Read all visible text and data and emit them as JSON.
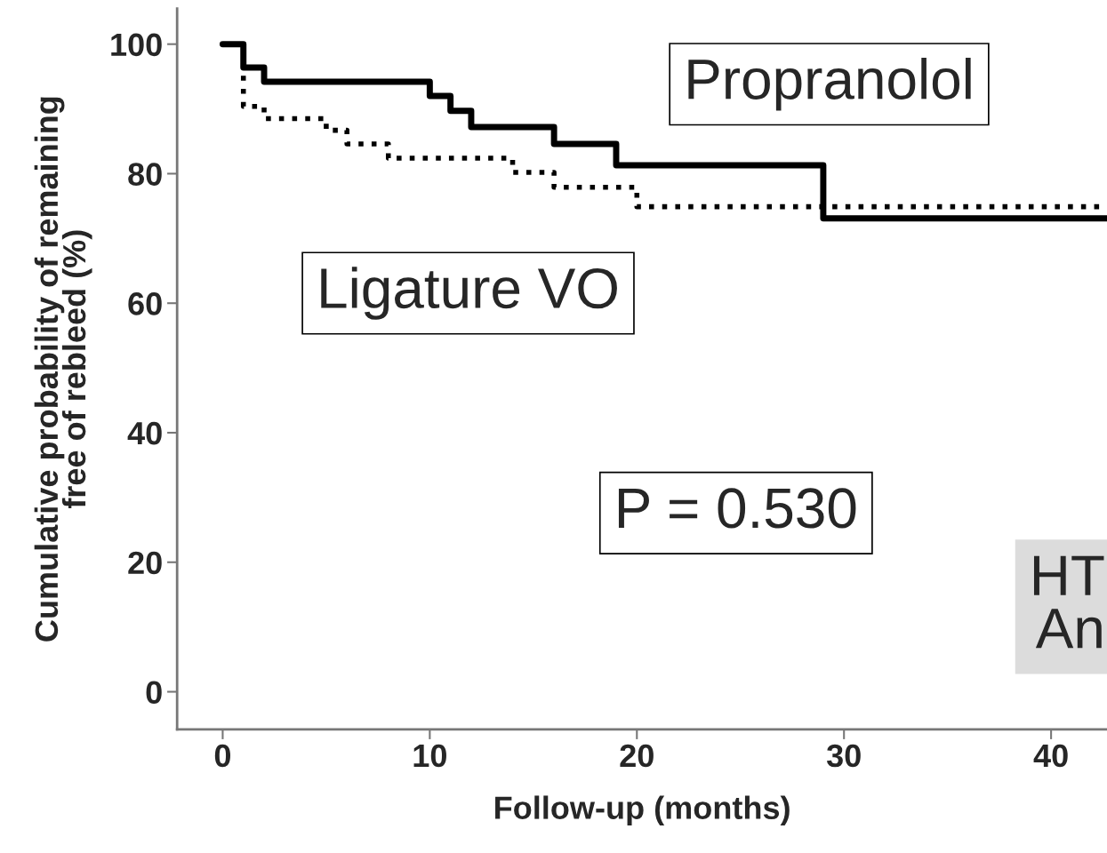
{
  "chart_data": {
    "type": "step",
    "xlabel": "Follow-up (months)",
    "ylabel": "Cumulative probability of remaining\nfree of rebleed (%)",
    "series": [
      {
        "name": "Propranolol",
        "color": "#000000",
        "line_style": "solid",
        "x": [
          0,
          1,
          2,
          10,
          11,
          12,
          16,
          19,
          29,
          42.7
        ],
        "values": [
          100,
          96.4,
          94.2,
          92,
          89.7,
          87.2,
          84.6,
          81.3,
          73.1,
          73.1
        ]
      },
      {
        "name": "Ligature VO",
        "color": "#000000",
        "line_style": "dotted",
        "x": [
          0,
          1,
          2,
          5,
          6,
          8,
          14,
          16,
          20,
          42.7
        ],
        "values": [
          100,
          90.4,
          88.5,
          86.7,
          84.6,
          82.4,
          80.2,
          77.9,
          74.9,
          74.9
        ]
      }
    ],
    "annotations": [
      "P = 0.530",
      "HT\nAn"
    ],
    "xlim": [
      -2.2,
      42.7
    ],
    "xticks": [
      0,
      10,
      20,
      30,
      40
    ],
    "ylim": [
      -5.8,
      105.5
    ],
    "yticks": [
      0,
      20,
      40,
      60,
      80,
      100
    ],
    "grid": false,
    "legend": false
  }
}
